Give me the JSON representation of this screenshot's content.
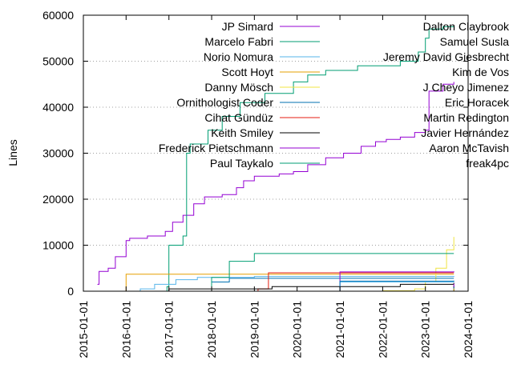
{
  "chart_data": {
    "type": "line",
    "title": "",
    "xlabel": "",
    "ylabel": "Lines",
    "ylim": [
      0,
      60000
    ],
    "xlim": [
      "2015-01-01",
      "2024-01-01"
    ],
    "y_ticks": [
      0,
      10000,
      20000,
      30000,
      40000,
      50000,
      60000
    ],
    "y_tick_labels": [
      "0",
      "10000",
      "20000",
      "30000",
      "40000",
      "50000",
      "60000"
    ],
    "x_ticks": [
      "2015-01-01",
      "2016-01-01",
      "2017-01-01",
      "2018-01-01",
      "2019-01-01",
      "2020-01-01",
      "2021-01-01",
      "2022-01-01",
      "2023-01-01",
      "2024-01-01"
    ],
    "grid": "horizontal dotted",
    "legend_position": "top, two columns",
    "series": [
      {
        "name": "JP Simard",
        "color": "#9400d3",
        "points": [
          [
            "2015-05-01",
            1500
          ],
          [
            "2015-05-15",
            4300
          ],
          [
            "2015-08-01",
            5000
          ],
          [
            "2015-10-01",
            7500
          ],
          [
            "2016-01-01",
            11000
          ],
          [
            "2016-02-01",
            11500
          ],
          [
            "2016-07-01",
            12000
          ],
          [
            "2016-12-01",
            13000
          ],
          [
            "2017-02-01",
            15000
          ],
          [
            "2017-05-01",
            16500
          ],
          [
            "2017-08-01",
            19000
          ],
          [
            "2017-11-01",
            20500
          ],
          [
            "2018-04-01",
            21000
          ],
          [
            "2018-08-01",
            22500
          ],
          [
            "2018-10-01",
            24000
          ],
          [
            "2019-01-01",
            25000
          ],
          [
            "2019-08-01",
            25500
          ],
          [
            "2019-12-01",
            26000
          ],
          [
            "2020-04-01",
            27500
          ],
          [
            "2020-09-01",
            29000
          ],
          [
            "2021-02-01",
            30000
          ],
          [
            "2021-07-01",
            31500
          ],
          [
            "2021-11-01",
            32500
          ],
          [
            "2022-02-01",
            33000
          ],
          [
            "2022-06-01",
            33500
          ],
          [
            "2022-10-01",
            34500
          ],
          [
            "2023-01-01",
            35000
          ],
          [
            "2023-02-01",
            43500
          ],
          [
            "2023-06-01",
            45000
          ],
          [
            "2023-09-01",
            45500
          ]
        ]
      },
      {
        "name": "Marcelo Fabri",
        "color": "#009e73",
        "points": [
          [
            "2016-11-01",
            0
          ],
          [
            "2016-12-15",
            1000
          ],
          [
            "2017-01-01",
            10000
          ],
          [
            "2017-05-01",
            12000
          ],
          [
            "2017-06-01",
            30000
          ],
          [
            "2017-07-01",
            32000
          ],
          [
            "2017-12-01",
            35000
          ],
          [
            "2018-04-01",
            38000
          ],
          [
            "2018-09-01",
            41000
          ],
          [
            "2019-04-01",
            43000
          ],
          [
            "2019-12-01",
            45500
          ],
          [
            "2020-04-01",
            47000
          ],
          [
            "2020-09-01",
            48000
          ],
          [
            "2021-06-01",
            49000
          ],
          [
            "2022-06-01",
            50000
          ],
          [
            "2022-11-01",
            52000
          ],
          [
            "2023-01-01",
            55000
          ],
          [
            "2023-02-01",
            57000
          ],
          [
            "2023-06-01",
            57500
          ],
          [
            "2023-09-01",
            57800
          ]
        ]
      },
      {
        "name": "Norio Nomura",
        "color": "#56b4e9",
        "points": [
          [
            "2016-02-01",
            0
          ],
          [
            "2016-05-01",
            500
          ],
          [
            "2016-09-01",
            1500
          ],
          [
            "2017-03-01",
            2500
          ],
          [
            "2017-09-01",
            3000
          ],
          [
            "2019-01-01",
            3200
          ],
          [
            "2023-09-01",
            3300
          ]
        ]
      },
      {
        "name": "Scott Hoyt",
        "color": "#e69f00",
        "points": [
          [
            "2015-12-15",
            0
          ],
          [
            "2016-01-01",
            3700
          ],
          [
            "2023-09-01",
            3700
          ]
        ]
      },
      {
        "name": "Danny Mösch",
        "color": "#f0e442",
        "points": [
          [
            "2020-06-01",
            0
          ],
          [
            "2022-01-01",
            100
          ],
          [
            "2022-10-01",
            500
          ],
          [
            "2023-01-01",
            2000
          ],
          [
            "2023-04-01",
            5000
          ],
          [
            "2023-07-01",
            9000
          ],
          [
            "2023-09-01",
            11800
          ]
        ]
      },
      {
        "name": "Ornithologist Coder",
        "color": "#0072b2",
        "points": [
          [
            "2017-08-01",
            0
          ],
          [
            "2018-01-01",
            2000
          ],
          [
            "2018-06-01",
            2800
          ],
          [
            "2023-09-01",
            2800
          ]
        ]
      },
      {
        "name": "Cihat Gündüz",
        "color": "#e51e10",
        "points": [
          [
            "2018-06-01",
            0
          ],
          [
            "2019-02-01",
            500
          ],
          [
            "2019-05-01",
            4000
          ],
          [
            "2023-09-01",
            4000
          ]
        ]
      },
      {
        "name": "Keith Smiley",
        "color": "#000000",
        "points": [
          [
            "2015-09-01",
            0
          ],
          [
            "2017-01-01",
            500
          ],
          [
            "2019-06-01",
            1000
          ],
          [
            "2022-06-01",
            1500
          ],
          [
            "2023-09-01",
            1800
          ]
        ]
      },
      {
        "name": "Frederick Pietschmann",
        "color": "#9400d3",
        "points": [
          [
            "2020-08-01",
            0
          ],
          [
            "2021-01-01",
            4200
          ],
          [
            "2023-09-01",
            4300
          ]
        ]
      },
      {
        "name": "Paul Taykalo",
        "color": "#009e73",
        "points": [
          [
            "2017-06-01",
            0
          ],
          [
            "2018-01-01",
            3000
          ],
          [
            "2018-06-01",
            6500
          ],
          [
            "2019-01-01",
            8200
          ],
          [
            "2023-09-01",
            8200
          ]
        ]
      },
      {
        "name": "Dalton Claybrook",
        "color": "#56b4e9",
        "points": [
          [
            "2020-01-01",
            0
          ],
          [
            "2021-01-01",
            2000
          ],
          [
            "2023-09-01",
            2100
          ]
        ]
      },
      {
        "name": "Samuel Susla",
        "color": "#e69f00",
        "points": [
          [
            "2018-01-01",
            0
          ],
          [
            "2023-09-01",
            500
          ]
        ]
      },
      {
        "name": "Jeremy David Giesbrecht",
        "color": "#f0e442",
        "points": [
          [
            "2018-01-01",
            0
          ],
          [
            "2023-09-01",
            300
          ]
        ]
      },
      {
        "name": "Kim de Vos",
        "color": "#0072b2",
        "points": [
          [
            "2019-01-01",
            0
          ],
          [
            "2021-01-01",
            2200
          ],
          [
            "2023-09-01",
            2300
          ]
        ]
      },
      {
        "name": "J Cheyo Jimenez",
        "color": "#e51e10",
        "points": [
          [
            "2016-01-01",
            0
          ],
          [
            "2023-09-01",
            400
          ]
        ]
      },
      {
        "name": "Eric Horacek",
        "color": "#000000",
        "points": [
          [
            "2019-01-01",
            0
          ],
          [
            "2023-09-01",
            1200
          ]
        ]
      },
      {
        "name": "Martin Redington",
        "color": "#9400d3",
        "points": [
          [
            "2022-06-01",
            0
          ],
          [
            "2023-09-01",
            1600
          ]
        ]
      },
      {
        "name": "Javier Hernández",
        "color": "#009e73",
        "points": [
          [
            "2017-01-01",
            0
          ],
          [
            "2023-09-01",
            900
          ]
        ]
      },
      {
        "name": "Aaron McTavish",
        "color": "#56b4e9",
        "points": [
          [
            "2018-01-01",
            0
          ],
          [
            "2023-09-01",
            700
          ]
        ]
      },
      {
        "name": "freak4pc",
        "color": "#e69f00",
        "points": [
          [
            "2017-01-01",
            0
          ],
          [
            "2023-09-01",
            600
          ]
        ]
      }
    ]
  }
}
